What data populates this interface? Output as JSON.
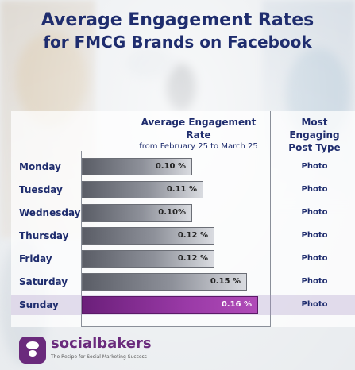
{
  "title": {
    "line1": "Average Engagement Rates",
    "line2": "for FMCG Brands on Facebook"
  },
  "columns": {
    "rate_header": "Average Engagement Rate",
    "rate_subheader": "from February 25 to March 25",
    "type_header_line1": "Most Engaging",
    "type_header_line2": "Post Type"
  },
  "brand": {
    "name": "socialbakers",
    "tagline": "The Recipe for Social Marketing Success"
  },
  "colors": {
    "title": "#1f2d6e",
    "highlight": "#9a3aa7",
    "bar": "#8e919a"
  },
  "chart_data": {
    "type": "bar",
    "orientation": "horizontal",
    "title": "Average Engagement Rates for FMCG Brands on Facebook",
    "categories": [
      "Monday",
      "Tuesday",
      "Wednesday",
      "Thursday",
      "Friday",
      "Saturday",
      "Sunday"
    ],
    "values": [
      0.1,
      0.11,
      0.1,
      0.12,
      0.12,
      0.15,
      0.16
    ],
    "value_labels": [
      "0.10 %",
      "0.11 %",
      "0.10%",
      "0.12 %",
      "0.12 %",
      "0.15 %",
      "0.16 %"
    ],
    "post_types": [
      "Photo",
      "Photo",
      "Photo",
      "Photo",
      "Photo",
      "Photo",
      "Photo"
    ],
    "highlight": "Sunday",
    "xlim": [
      0,
      0.2
    ]
  }
}
